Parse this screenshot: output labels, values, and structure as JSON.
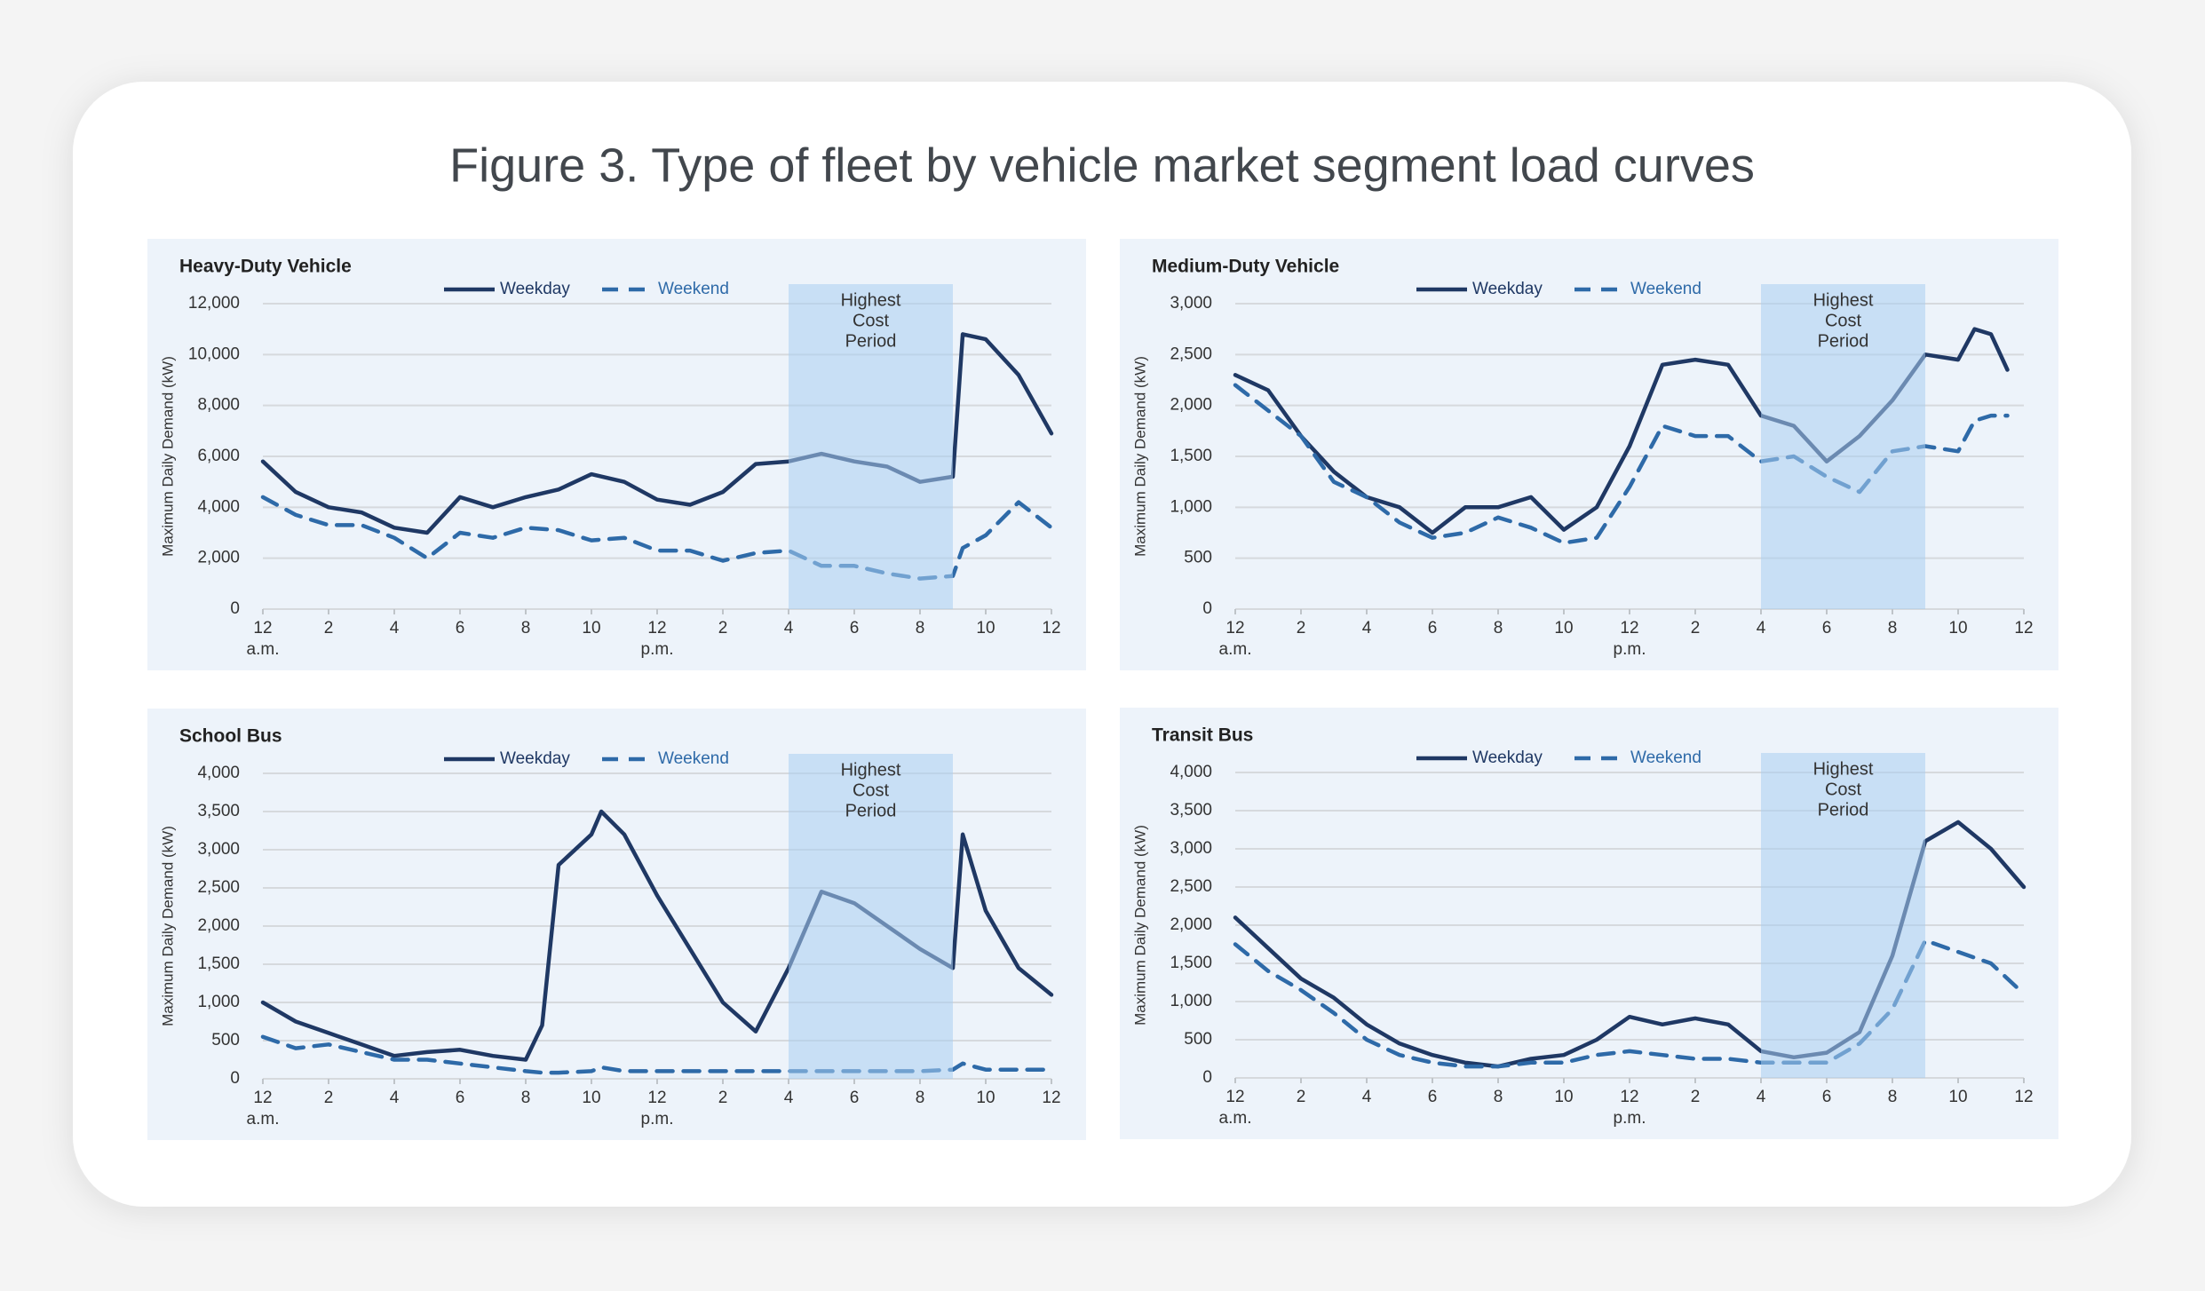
{
  "title": "Figure 3. Type of fleet by vehicle market segment load curves",
  "chart_data": [
    {
      "type": "line",
      "title": "Heavy-Duty Vehicle",
      "y_label": "Maximum Daily Demand (kW)",
      "x": [
        0,
        1,
        2,
        3,
        4,
        5,
        6,
        7,
        8,
        9,
        10,
        11,
        12,
        13,
        14,
        15,
        16,
        17,
        18,
        19,
        20,
        21,
        21.3,
        22,
        23,
        24
      ],
      "xlim": [
        0,
        24
      ],
      "xticks": [
        {
          "value": 0,
          "label": "12"
        },
        2,
        4,
        6,
        8,
        10,
        {
          "value": 12,
          "label": "12"
        },
        {
          "value": 14,
          "label": "2"
        },
        {
          "value": 16,
          "label": "4"
        },
        {
          "value": 18,
          "label": "6"
        },
        {
          "value": 20,
          "label": "8"
        },
        {
          "value": 22,
          "label": "10"
        },
        {
          "value": 24,
          "label": "12"
        }
      ],
      "x_sublabels": [
        {
          "value": 0,
          "label": "a.m."
        },
        {
          "value": 12,
          "label": "p.m."
        }
      ],
      "ylim": [
        0,
        12000
      ],
      "yticks": [
        0,
        {
          "value": 2000,
          "label": "2,000"
        },
        {
          "value": 4000,
          "label": "4,000"
        },
        {
          "value": 6000,
          "label": "6,000"
        },
        {
          "value": 8000,
          "label": "8,000"
        },
        {
          "value": 10000,
          "label": "10,000"
        },
        {
          "value": 12000,
          "label": "12,000"
        }
      ],
      "grid": true,
      "highlight": {
        "xlim": [
          16,
          21
        ],
        "lines": [
          "Highest",
          "Cost",
          "Period"
        ],
        "color": "#a9cdf0"
      },
      "series": [
        {
          "name": "Weekday",
          "color": "#1f3864",
          "line_style": "solid",
          "values": [
            5800,
            4600,
            4000,
            3800,
            3200,
            3000,
            4400,
            4000,
            4400,
            4700,
            5300,
            5000,
            4300,
            4100,
            4600,
            5700,
            5800,
            6100,
            5800,
            5600,
            5000,
            5200,
            10800,
            10600,
            9200,
            6900
          ]
        },
        {
          "name": "Weekend",
          "color": "#2e6aa8",
          "line_style": "dashed",
          "values": [
            4400,
            3700,
            3300,
            3300,
            2800,
            2000,
            3000,
            2800,
            3200,
            3100,
            2700,
            2800,
            2300,
            2300,
            1900,
            2200,
            2300,
            1700,
            1700,
            1400,
            1200,
            1300,
            2400,
            2900,
            4200,
            3200
          ]
        }
      ]
    },
    {
      "type": "line",
      "title": "Medium-Duty Vehicle",
      "y_label": "Maximum Daily Demand (kW)",
      "x": [
        0,
        1,
        2,
        3,
        4,
        5,
        6,
        7,
        8,
        9,
        10,
        11,
        12,
        13,
        14,
        15,
        16,
        17,
        18,
        19,
        20,
        21,
        22,
        22.5,
        23,
        23.5
      ],
      "xlim": [
        0,
        24
      ],
      "xticks": [
        {
          "value": 0,
          "label": "12"
        },
        2,
        4,
        6,
        8,
        10,
        {
          "value": 12,
          "label": "12"
        },
        {
          "value": 14,
          "label": "2"
        },
        {
          "value": 16,
          "label": "4"
        },
        {
          "value": 18,
          "label": "6"
        },
        {
          "value": 20,
          "label": "8"
        },
        {
          "value": 22,
          "label": "10"
        },
        {
          "value": 24,
          "label": "12"
        }
      ],
      "x_sublabels": [
        {
          "value": 0,
          "label": "a.m."
        },
        {
          "value": 12,
          "label": "p.m."
        }
      ],
      "ylim": [
        0,
        3000
      ],
      "yticks": [
        0,
        500,
        {
          "value": 1000,
          "label": "1,000"
        },
        {
          "value": 1500,
          "label": "1,500"
        },
        {
          "value": 2000,
          "label": "2,000"
        },
        {
          "value": 2500,
          "label": "2,500"
        },
        {
          "value": 3000,
          "label": "3,000"
        }
      ],
      "grid": true,
      "highlight": {
        "xlim": [
          16,
          21
        ],
        "lines": [
          "Highest",
          "Cost",
          "Period"
        ],
        "color": "#a9cdf0"
      },
      "series": [
        {
          "name": "Weekday",
          "color": "#1f3864",
          "line_style": "solid",
          "values": [
            2300,
            2150,
            1700,
            1350,
            1100,
            1000,
            750,
            1000,
            1000,
            1100,
            780,
            1000,
            1600,
            2400,
            2450,
            2400,
            1900,
            1800,
            1450,
            1700,
            2050,
            2500,
            2450,
            2750,
            2700,
            2350
          ]
        },
        {
          "name": "Weekend",
          "color": "#2e6aa8",
          "line_style": "dashed",
          "values": [
            2200,
            1950,
            1700,
            1250,
            1100,
            850,
            700,
            750,
            900,
            800,
            650,
            700,
            1200,
            1800,
            1700,
            1700,
            1450,
            1500,
            1300,
            1150,
            1550,
            1600,
            1550,
            1850,
            1900,
            1900
          ]
        }
      ]
    },
    {
      "type": "line",
      "title": "School Bus",
      "y_label": "Maximum Daily Demand (kW)",
      "x": [
        0,
        1,
        2,
        3,
        4,
        5,
        6,
        7,
        8,
        8.5,
        9,
        10,
        10.3,
        11,
        12,
        13,
        14,
        15,
        16,
        17,
        18,
        19,
        20,
        21,
        21.3,
        22,
        23,
        24
      ],
      "xlim": [
        0,
        24
      ],
      "xticks": [
        {
          "value": 0,
          "label": "12"
        },
        2,
        4,
        6,
        8,
        10,
        {
          "value": 12,
          "label": "12"
        },
        {
          "value": 14,
          "label": "2"
        },
        {
          "value": 16,
          "label": "4"
        },
        {
          "value": 18,
          "label": "6"
        },
        {
          "value": 20,
          "label": "8"
        },
        {
          "value": 22,
          "label": "10"
        },
        {
          "value": 24,
          "label": "12"
        }
      ],
      "x_sublabels": [
        {
          "value": 0,
          "label": "a.m."
        },
        {
          "value": 12,
          "label": "p.m."
        }
      ],
      "ylim": [
        0,
        4000
      ],
      "yticks": [
        0,
        500,
        {
          "value": 1000,
          "label": "1,000"
        },
        {
          "value": 1500,
          "label": "1,500"
        },
        {
          "value": 2000,
          "label": "2,000"
        },
        {
          "value": 2500,
          "label": "2,500"
        },
        {
          "value": 3000,
          "label": "3,000"
        },
        {
          "value": 3500,
          "label": "3,500"
        },
        {
          "value": 4000,
          "label": "4,000"
        }
      ],
      "grid": true,
      "highlight": {
        "xlim": [
          16,
          21
        ],
        "lines": [
          "Highest",
          "Cost",
          "Period"
        ],
        "color": "#a9cdf0"
      },
      "series": [
        {
          "name": "Weekday",
          "color": "#1f3864",
          "line_style": "solid",
          "values": [
            1000,
            750,
            600,
            450,
            300,
            350,
            380,
            300,
            250,
            700,
            2800,
            3200,
            3500,
            3200,
            2400,
            1700,
            1000,
            620,
            1450,
            2450,
            2300,
            2000,
            1700,
            1450,
            3200,
            2200,
            1450,
            1100
          ]
        },
        {
          "name": "Weekend",
          "color": "#2e6aa8",
          "line_style": "dashed",
          "values": [
            550,
            400,
            450,
            350,
            250,
            250,
            200,
            150,
            100,
            80,
            80,
            100,
            150,
            100,
            100,
            100,
            100,
            100,
            100,
            100,
            100,
            100,
            100,
            120,
            200,
            120,
            120,
            120
          ]
        }
      ]
    },
    {
      "type": "line",
      "title": "Transit Bus",
      "y_label": "Maximum Daily Demand (kW)",
      "x": [
        0,
        1,
        2,
        3,
        4,
        5,
        6,
        7,
        8,
        9,
        10,
        11,
        12,
        13,
        14,
        15,
        16,
        17,
        18,
        19,
        20,
        21,
        22,
        23,
        24
      ],
      "xlim": [
        0,
        24
      ],
      "xticks": [
        {
          "value": 0,
          "label": "12"
        },
        2,
        4,
        6,
        8,
        10,
        {
          "value": 12,
          "label": "12"
        },
        {
          "value": 14,
          "label": "2"
        },
        {
          "value": 16,
          "label": "4"
        },
        {
          "value": 18,
          "label": "6"
        },
        {
          "value": 20,
          "label": "8"
        },
        {
          "value": 22,
          "label": "10"
        },
        {
          "value": 24,
          "label": "12"
        }
      ],
      "x_sublabels": [
        {
          "value": 0,
          "label": "a.m."
        },
        {
          "value": 12,
          "label": "p.m."
        }
      ],
      "ylim": [
        0,
        4000
      ],
      "yticks": [
        0,
        500,
        {
          "value": 1000,
          "label": "1,000"
        },
        {
          "value": 1500,
          "label": "1,500"
        },
        {
          "value": 2000,
          "label": "2,000"
        },
        {
          "value": 2500,
          "label": "2,500"
        },
        {
          "value": 3000,
          "label": "3,000"
        },
        {
          "value": 3500,
          "label": "3,500"
        },
        {
          "value": 4000,
          "label": "4,000"
        }
      ],
      "grid": true,
      "highlight": {
        "xlim": [
          16,
          21
        ],
        "lines": [
          "Highest",
          "Cost",
          "Period"
        ],
        "color": "#a9cdf0"
      },
      "series": [
        {
          "name": "Weekday",
          "color": "#1f3864",
          "line_style": "solid",
          "values": [
            2100,
            1700,
            1300,
            1050,
            700,
            450,
            300,
            200,
            150,
            250,
            300,
            500,
            800,
            700,
            780,
            700,
            350,
            270,
            330,
            600,
            1600,
            3100,
            3350,
            3000,
            2500
          ]
        },
        {
          "name": "Weekend",
          "color": "#2e6aa8",
          "line_style": "dashed",
          "values": [
            1750,
            1400,
            1150,
            850,
            500,
            300,
            200,
            150,
            150,
            200,
            200,
            300,
            350,
            300,
            250,
            250,
            200,
            200,
            200,
            450,
            900,
            1800,
            1650,
            1500,
            1100
          ]
        }
      ]
    }
  ]
}
